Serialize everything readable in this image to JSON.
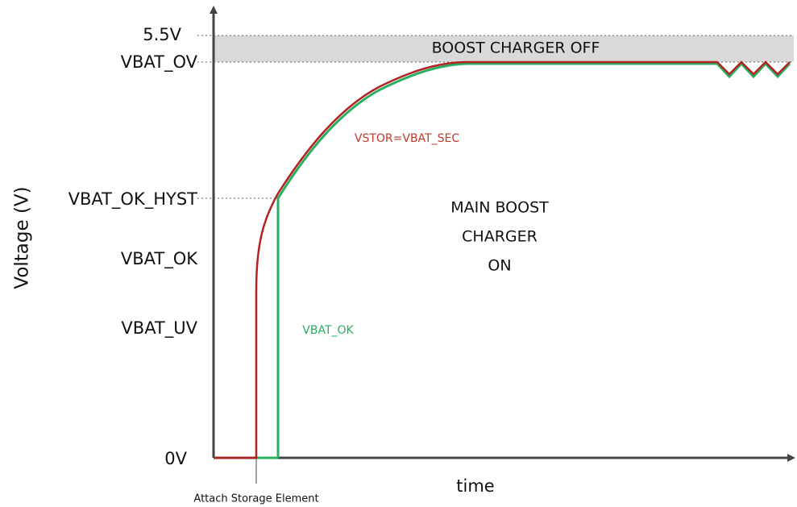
{
  "y_axis": {
    "title": "Voltage (V)",
    "levels": [
      "5.5V",
      "VBAT_OV",
      "VBAT_OK_HYST",
      "VBAT_OK",
      "VBAT_UV",
      "0V"
    ]
  },
  "x_axis": {
    "title": "time",
    "event": "Attach Storage Element"
  },
  "regions": {
    "off": "BOOST CHARGER OFF",
    "on": [
      "MAIN BOOST",
      "CHARGER",
      "ON"
    ]
  },
  "curves": {
    "vstor": "VSTOR=VBAT_SEC",
    "vbat_ok": "VBAT_OK"
  }
}
